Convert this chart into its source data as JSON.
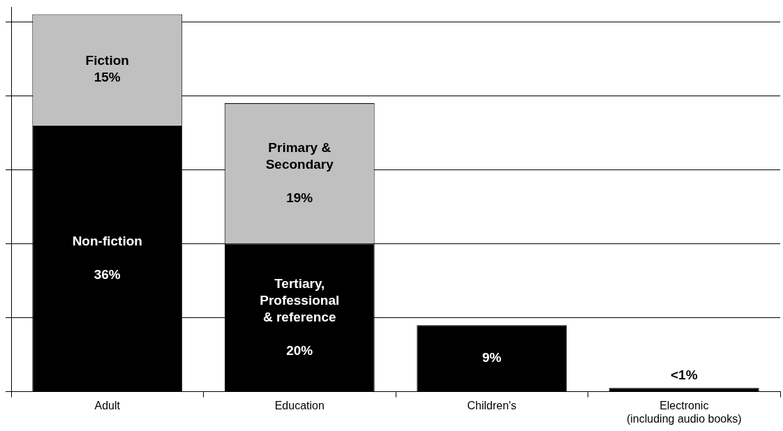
{
  "chart_data": {
    "type": "bar",
    "stacked": true,
    "categories": [
      "Adult",
      "Education",
      "Children's",
      "Electronic\n(including audio books)"
    ],
    "series": [
      {
        "color": "#000000",
        "values": [
          36,
          20,
          9,
          0.5
        ],
        "value_labels": [
          "Non-fiction\n\n36%",
          "Tertiary,\nProfessional\n& reference\n\n20%",
          "9%",
          "<1%"
        ]
      },
      {
        "color": "#c0c0c0",
        "values": [
          15,
          19,
          null,
          null
        ],
        "value_labels": [
          "Fiction\n15%",
          "Primary &\nSecondary\n\n19%",
          null,
          null
        ]
      }
    ],
    "ylim": [
      0,
      52
    ],
    "yticks": [
      {
        "value": 10,
        "label": null
      },
      {
        "value": 20,
        "label": null
      },
      {
        "value": 30,
        "label": null
      },
      {
        "value": 40,
        "label": null
      },
      {
        "value": 50,
        "label": null
      }
    ],
    "grid": "y",
    "tick_labels": "x",
    "legend": false
  }
}
